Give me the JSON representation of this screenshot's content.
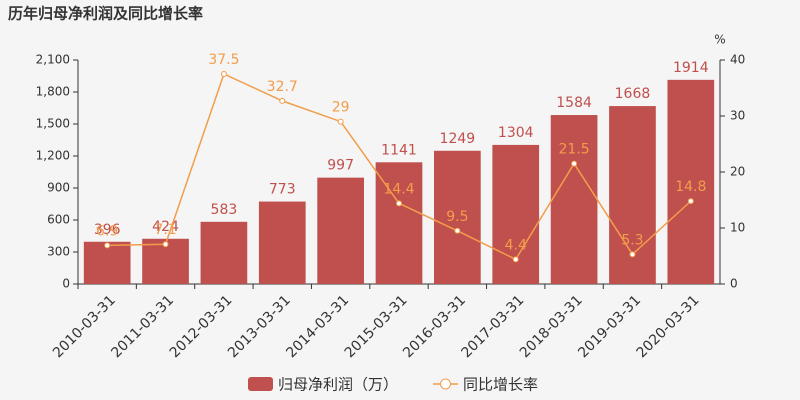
{
  "chart_data": {
    "type": "bar_line",
    "title": "历年归母净利润及同比增长率",
    "categories": [
      "2010-03-31",
      "2011-03-31",
      "2012-03-31",
      "2013-03-31",
      "2014-03-31",
      "2015-03-31",
      "2016-03-31",
      "2017-03-31",
      "2018-03-31",
      "2019-03-31",
      "2020-03-31"
    ],
    "series": [
      {
        "name": "归母净利润（万）",
        "color": "#c0504d",
        "type": "bar",
        "values": [
          396,
          424,
          583,
          773,
          997,
          1141,
          1249,
          1304,
          1584,
          1668,
          1914
        ]
      },
      {
        "name": "同比增长率",
        "color": "#f29d4b",
        "type": "line",
        "axis": "y2",
        "values": [
          6.9,
          7.1,
          37.5,
          32.7,
          29,
          14.4,
          9.5,
          4.4,
          21.5,
          5.3,
          14.8
        ]
      }
    ],
    "ylim": [
      0,
      2100
    ],
    "yticks": [
      0,
      300,
      600,
      900,
      {
        "value": 1200,
        "label": "1,200"
      },
      {
        "value": 1500,
        "label": "1,500"
      },
      {
        "value": 1800,
        "label": "1,800"
      },
      {
        "value": 2100,
        "label": "2,100"
      }
    ],
    "y2lim": [
      0,
      40
    ],
    "y2ticks": [
      0,
      10,
      20,
      30,
      40
    ],
    "y2_label": "%"
  }
}
